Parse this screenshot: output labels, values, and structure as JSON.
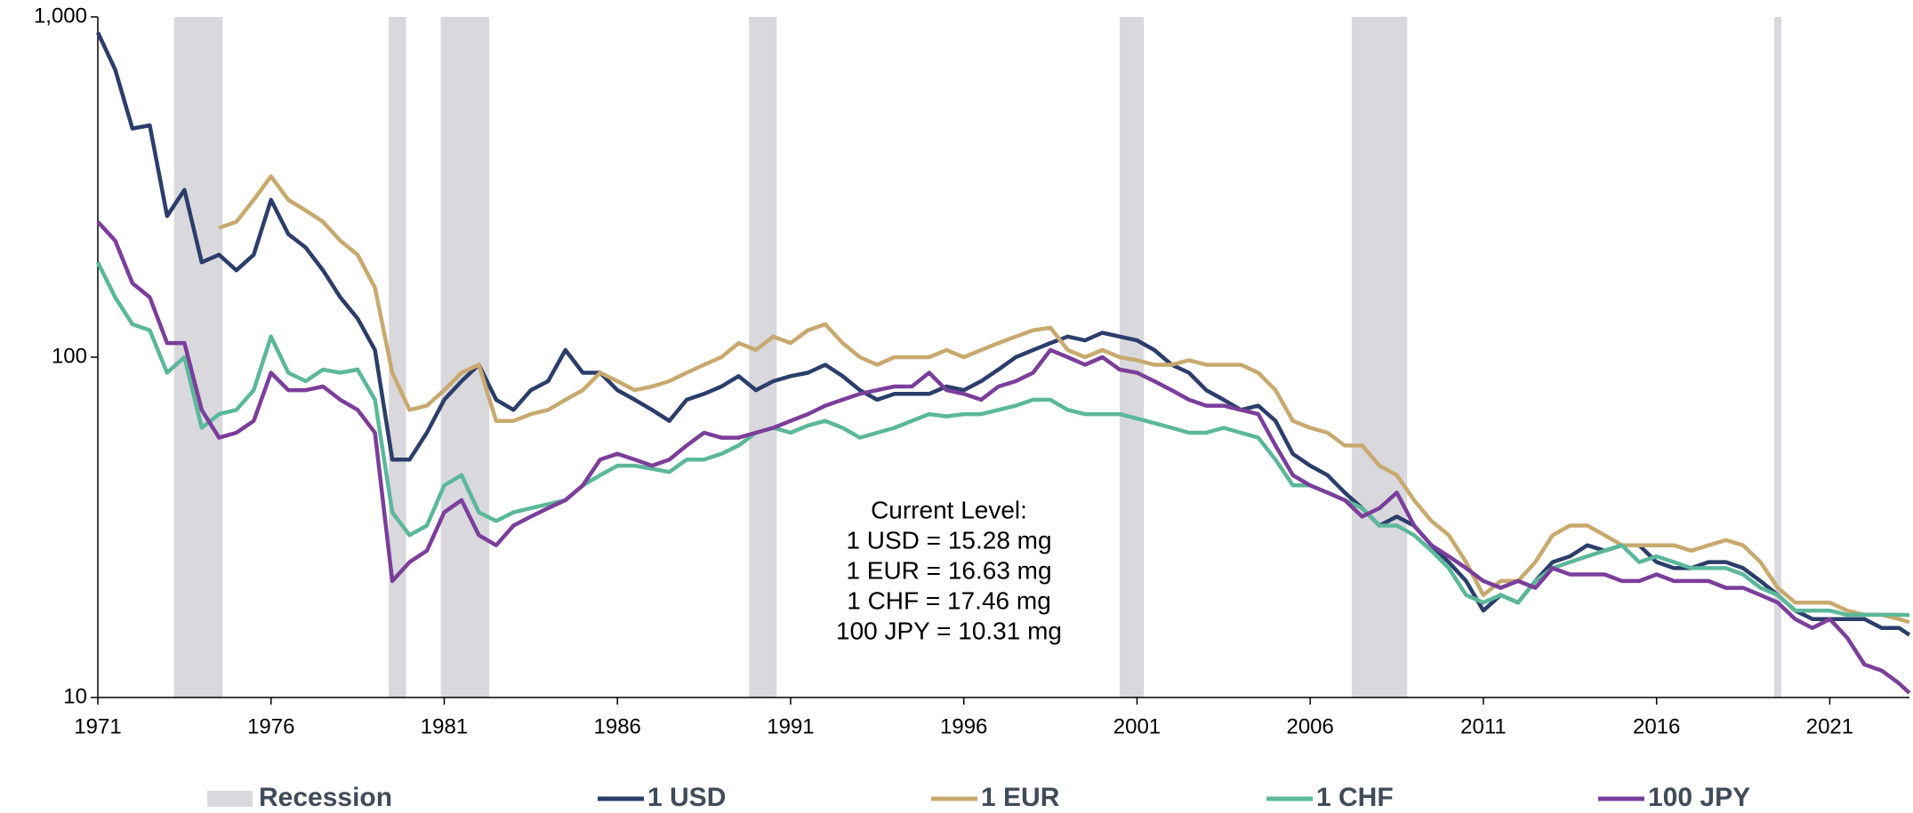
{
  "chart_data": {
    "type": "line",
    "log_y": true,
    "ylim": [
      10,
      1000
    ],
    "yticks": [
      10,
      100,
      {
        "value": 1000,
        "label": "1,000"
      }
    ],
    "xlim": [
      1971,
      2023.3
    ],
    "xticks": [
      1971,
      1976,
      1981,
      1986,
      1991,
      1996,
      2001,
      2006,
      2011,
      2016,
      2021
    ],
    "recession_label": "Recession",
    "recession_color": "#d9d8dc",
    "recessions": [
      [
        1973.2,
        1974.6
      ],
      [
        1979.4,
        1979.9
      ],
      [
        1980.9,
        1982.3
      ],
      [
        1989.8,
        1990.6
      ],
      [
        2000.5,
        2001.2
      ],
      [
        2007.2,
        2008.8
      ],
      [
        2019.4,
        2019.6
      ]
    ],
    "annotation": [
      "Current Level:",
      "1 USD = 15.28 mg",
      "1 EUR = 16.63 mg",
      "1 CHF = 17.46 mg",
      "100 JPY = 10.31 mg"
    ],
    "x": [
      1971,
      1971.5,
      1972,
      1972.5,
      1973,
      1973.5,
      1974,
      1974.5,
      1975,
      1975.5,
      1976,
      1976.5,
      1977,
      1977.5,
      1978,
      1978.5,
      1979,
      1979.5,
      1980,
      1980.5,
      1981,
      1981.5,
      1982,
      1982.5,
      1983,
      1983.5,
      1984,
      1984.5,
      1985,
      1985.5,
      1986,
      1986.5,
      1987,
      1987.5,
      1988,
      1988.5,
      1989,
      1989.5,
      1990,
      1990.5,
      1991,
      1991.5,
      1992,
      1992.5,
      1993,
      1993.5,
      1994,
      1994.5,
      1995,
      1995.5,
      1996,
      1996.5,
      1997,
      1997.5,
      1998,
      1998.5,
      1999,
      1999.5,
      2000,
      2000.5,
      2001,
      2001.5,
      2002,
      2002.5,
      2003,
      2003.5,
      2004,
      2004.5,
      2005,
      2005.5,
      2006,
      2006.5,
      2007,
      2007.5,
      2008,
      2008.5,
      2009,
      2009.5,
      2010,
      2010.5,
      2011,
      2011.5,
      2012,
      2012.5,
      2013,
      2013.5,
      2014,
      2014.5,
      2015,
      2015.5,
      2016,
      2016.5,
      2017,
      2017.5,
      2018,
      2018.5,
      2019,
      2019.5,
      2020,
      2020.5,
      2021,
      2021.5,
      2022,
      2022.5,
      2023,
      2023.3
    ],
    "series": [
      {
        "name": "1 USD",
        "color": "#2b3e6b",
        "values": [
          900,
          700,
          470,
          480,
          260,
          310,
          190,
          200,
          180,
          200,
          290,
          230,
          210,
          180,
          150,
          130,
          105,
          50,
          50,
          60,
          75,
          85,
          95,
          75,
          70,
          80,
          85,
          105,
          90,
          90,
          80,
          75,
          70,
          65,
          75,
          78,
          82,
          88,
          80,
          85,
          88,
          90,
          95,
          88,
          80,
          75,
          78,
          78,
          78,
          82,
          80,
          85,
          92,
          100,
          105,
          110,
          115,
          112,
          118,
          115,
          112,
          105,
          95,
          90,
          80,
          75,
          70,
          72,
          65,
          52,
          48,
          45,
          40,
          36,
          32,
          34,
          32,
          28,
          25,
          22,
          18,
          20,
          19,
          22,
          25,
          26,
          28,
          27,
          28,
          28,
          25,
          24,
          24,
          25,
          25,
          24,
          22,
          20,
          18,
          17,
          17,
          17,
          17,
          16,
          16,
          15.28
        ]
      },
      {
        "name": "1 EUR",
        "color": "#c8a96e",
        "values": [
          null,
          null,
          null,
          null,
          null,
          null,
          null,
          240,
          250,
          290,
          340,
          290,
          270,
          250,
          220,
          200,
          160,
          90,
          70,
          72,
          80,
          90,
          95,
          65,
          65,
          68,
          70,
          75,
          80,
          90,
          85,
          80,
          82,
          85,
          90,
          95,
          100,
          110,
          105,
          115,
          110,
          120,
          125,
          110,
          100,
          95,
          100,
          100,
          100,
          105,
          100,
          105,
          110,
          115,
          120,
          122,
          105,
          100,
          105,
          100,
          98,
          95,
          95,
          98,
          95,
          95,
          95,
          90,
          80,
          65,
          62,
          60,
          55,
          55,
          48,
          45,
          38,
          33,
          30,
          25,
          20,
          22,
          22,
          25,
          30,
          32,
          32,
          30,
          28,
          28,
          28,
          28,
          27,
          28,
          29,
          28,
          25,
          21,
          19,
          19,
          19,
          18,
          17.5,
          17.5,
          17,
          16.63
        ]
      },
      {
        "name": "1 CHF",
        "color": "#5bb89a",
        "values": [
          190,
          150,
          125,
          120,
          90,
          100,
          62,
          68,
          70,
          80,
          115,
          90,
          85,
          92,
          90,
          92,
          75,
          35,
          30,
          32,
          42,
          45,
          35,
          33,
          35,
          36,
          37,
          38,
          42,
          45,
          48,
          48,
          47,
          46,
          50,
          50,
          52,
          55,
          60,
          62,
          60,
          63,
          65,
          62,
          58,
          60,
          62,
          65,
          68,
          67,
          68,
          68,
          70,
          72,
          75,
          75,
          70,
          68,
          68,
          68,
          66,
          64,
          62,
          60,
          60,
          62,
          60,
          58,
          50,
          42,
          42,
          40,
          38,
          36,
          32,
          32,
          30,
          27,
          24,
          20,
          19,
          20,
          19,
          22,
          24,
          25,
          26,
          27,
          28,
          25,
          26,
          25,
          24,
          24,
          24,
          23,
          21,
          20,
          18,
          18,
          18,
          17.5,
          17.5,
          17.5,
          17.5,
          17.46
        ]
      },
      {
        "name": "100 JPY",
        "color": "#7b3e9b",
        "values": [
          250,
          220,
          165,
          150,
          110,
          110,
          70,
          58,
          60,
          65,
          90,
          80,
          80,
          82,
          75,
          70,
          60,
          22,
          25,
          27,
          35,
          38,
          30,
          28,
          32,
          34,
          36,
          38,
          42,
          50,
          52,
          50,
          48,
          50,
          55,
          60,
          58,
          58,
          60,
          62,
          65,
          68,
          72,
          75,
          78,
          80,
          82,
          82,
          90,
          80,
          78,
          75,
          82,
          85,
          90,
          105,
          100,
          95,
          100,
          92,
          90,
          85,
          80,
          75,
          72,
          72,
          70,
          68,
          55,
          45,
          42,
          40,
          38,
          34,
          36,
          40,
          32,
          28,
          26,
          24,
          22,
          21,
          22,
          21,
          24,
          23,
          23,
          23,
          22,
          22,
          23,
          22,
          22,
          22,
          21,
          21,
          20,
          19,
          17,
          16,
          17,
          15,
          12.5,
          12,
          11,
          10.31
        ]
      }
    ]
  }
}
